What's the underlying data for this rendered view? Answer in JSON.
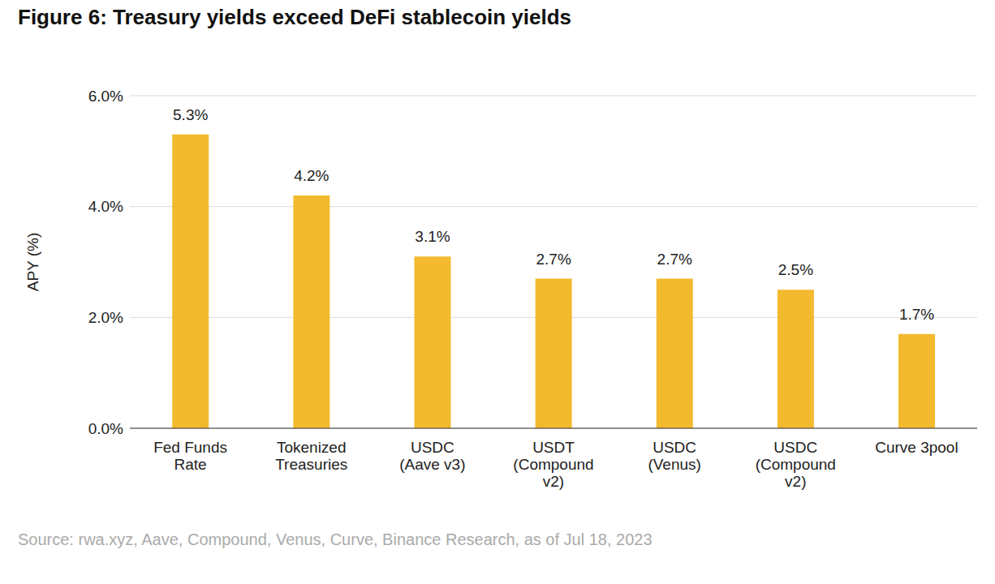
{
  "chart_data": {
    "type": "bar",
    "title": "Figure 6: Treasury yields exceed DeFi stablecoin yields",
    "subtitle": "Source: rwa.xyz, Aave, Compound, Venus, Curve, Binance Research, as of Jul 18, 2023",
    "y_label": "APY (%)",
    "categories": [
      "Fed Funds Rate",
      "Tokenized Treasuries",
      "USDC (Aave v3)",
      "USDT (Compound v2)",
      "USDC (Venus)",
      "USDC (Compound v2)",
      "Curve 3pool"
    ],
    "values": [
      5.3,
      4.2,
      3.1,
      2.7,
      2.7,
      2.5,
      1.7
    ],
    "value_labels": [
      "5.3%",
      "4.2%",
      "3.1%",
      "2.7%",
      "2.7%",
      "2.5%",
      "1.7%"
    ],
    "color": "#f3ba2f",
    "ylim": [
      0,
      6
    ],
    "yticks": [
      {
        "value": 0,
        "label": "0.0%"
      },
      {
        "value": 2,
        "label": "2.0%"
      },
      {
        "value": 4,
        "label": "4.0%"
      },
      {
        "value": 6,
        "label": "6.0%"
      }
    ],
    "grid": true,
    "data_labels": true
  }
}
